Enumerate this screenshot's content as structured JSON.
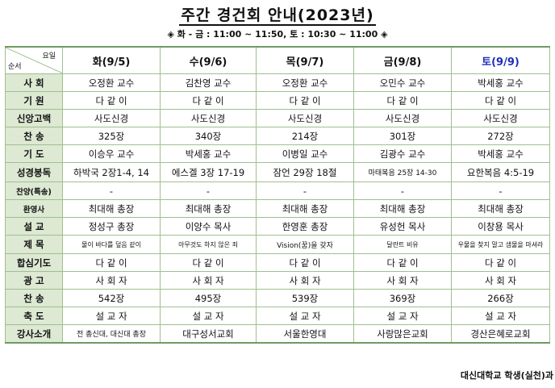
{
  "title": "주간 경건회 안내(2023년)",
  "subtitle": "◈ 화 - 금 : 11:00 ~ 11:50, 토 : 10:30 ~ 11:00 ◈",
  "corner": {
    "top": "요일",
    "bottom": "순서"
  },
  "days": [
    {
      "label": "화(9/5)",
      "color": "#111111"
    },
    {
      "label": "수(9/6)",
      "color": "#111111"
    },
    {
      "label": "목(9/7)",
      "color": "#111111"
    },
    {
      "label": "금(9/8)",
      "color": "#111111"
    },
    {
      "label": "토(9/9)",
      "color": "#1e2fb8"
    }
  ],
  "rows": [
    {
      "label": "사 회",
      "cells": [
        "오정환 교수",
        "김찬영 교수",
        "오정환 교수",
        "오민수 교수",
        "박세홍 교수"
      ]
    },
    {
      "label": "기 원",
      "cells": [
        "다 같 이",
        "다 같 이",
        "다 같 이",
        "다 같 이",
        "다 같 이"
      ]
    },
    {
      "label": "신앙고백",
      "cells": [
        "사도신경",
        "사도신경",
        "사도신경",
        "사도신경",
        "사도신경"
      ]
    },
    {
      "label": "찬 송",
      "cells": [
        "325장",
        "340장",
        "214장",
        "301장",
        "272장"
      ]
    },
    {
      "label": "기 도",
      "cells": [
        "이승우 교수",
        "박세홍 교수",
        "이병일 교수",
        "김광수 교수",
        "박세홍 교수"
      ]
    },
    {
      "label": "성경봉독",
      "cells": [
        "하박국 2장1-4, 14",
        "에스겔 3장 17-19",
        "잠언 29장 18절",
        "마태복음 25장 14-30",
        "요한복음 4:5-19"
      ]
    },
    {
      "label": "찬양(특송)",
      "cells": [
        "-",
        "-",
        "-",
        "-",
        "-"
      ]
    },
    {
      "label": "환영사",
      "cells": [
        "최대해 총장",
        "최대해 총장",
        "최대해 총장",
        "최대해 총장",
        "최대해 총장"
      ]
    },
    {
      "label": "설 교",
      "cells": [
        "정성구 총장",
        "이양수 목사",
        "한영훈 총장",
        "유성헌 목사",
        "이창용 목사"
      ]
    },
    {
      "label": "제 목",
      "cells": [
        "물이 바다를 덮음 같이",
        "아무것도 하지 않은 죄",
        "Vision(꿈)을 갖자",
        "달란트 비유",
        "우물을 찾지 말고 샘물을 마셔라"
      ]
    },
    {
      "label": "합심기도",
      "cells": [
        "다 같 이",
        "다 같 이",
        "다 같 이",
        "다 같 이",
        "다 같 이"
      ]
    },
    {
      "label": "광 고",
      "cells": [
        "사 회 자",
        "사 회 자",
        "사 회 자",
        "사 회 자",
        "사 회 자"
      ]
    },
    {
      "label": "찬 송",
      "cells": [
        "542장",
        "495장",
        "539장",
        "369장",
        "266장"
      ]
    },
    {
      "label": "축 도",
      "cells": [
        "설 교 자",
        "설 교 자",
        "설 교 자",
        "설 교 자",
        "설 교 자"
      ]
    },
    {
      "label": "강사소개",
      "cells": [
        "전 총신대, 대신대 총장",
        "대구성서교회",
        "서울한영대",
        "사랑많은교회",
        "경산은혜로교회"
      ]
    }
  ],
  "footer": "대신대학교 학생(실천)과"
}
